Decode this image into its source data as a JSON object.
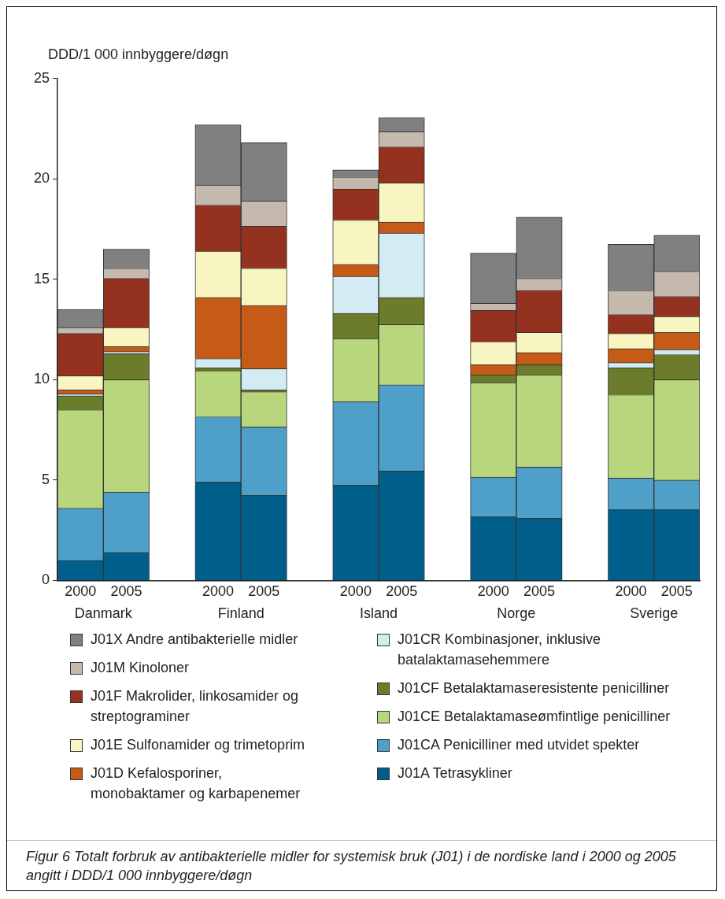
{
  "chart_data": {
    "type": "bar",
    "stacked": true,
    "ylabel": "DDD/1 000 innbyggere/døgn",
    "categories": [
      "2000",
      "2005",
      null,
      "2000",
      "2005",
      null,
      "2000",
      "2005",
      null,
      "2000",
      "2005",
      null,
      "2000",
      "2005"
    ],
    "series": [
      {
        "name": "J01A Tetrasykliner",
        "color": "#005f8a",
        "values": [
          1.0,
          1.4,
          null,
          4.9,
          4.25,
          null,
          4.75,
          5.45,
          null,
          3.2,
          3.1,
          null,
          3.55,
          3.55
        ]
      },
      {
        "name": "J01CA Penicilliner med utvidet spekter",
        "color": "#4fa0c8",
        "values": [
          2.6,
          3.0,
          null,
          3.25,
          3.4,
          null,
          4.15,
          4.3,
          null,
          1.95,
          2.55,
          null,
          1.55,
          1.45
        ]
      },
      {
        "name": "J01CE Betalaktamaseømfintlige penicilliner",
        "color": "#b8d67c",
        "values": [
          4.9,
          5.6,
          null,
          2.3,
          1.75,
          null,
          3.15,
          3.0,
          null,
          4.7,
          4.6,
          null,
          4.15,
          5.0
        ]
      },
      {
        "name": "J01CF Betalaktamaseresistente penicilliner",
        "color": "#6b7c2a",
        "values": [
          0.7,
          1.3,
          null,
          0.15,
          0.1,
          null,
          1.25,
          1.35,
          null,
          0.4,
          0.5,
          null,
          1.35,
          1.25
        ]
      },
      {
        "name": "J01CR Kombinasjoner, inklusive batalaktamasehemmere",
        "color": "#d3ebf2",
        "values": [
          0.1,
          0.1,
          null,
          0.45,
          1.05,
          null,
          1.85,
          3.2,
          null,
          null,
          null,
          null,
          0.25,
          0.25
        ]
      },
      {
        "name": "J01D Kefalosporiner, monobaktamer og karbapenemer",
        "color": "#c65b17",
        "values": [
          0.2,
          0.25,
          null,
          3.05,
          3.15,
          null,
          0.6,
          0.55,
          null,
          0.5,
          0.6,
          null,
          0.7,
          0.85
        ]
      },
      {
        "name": "J01E Sulfonamider og trimetoprim",
        "color": "#f9f5c0",
        "values": [
          0.7,
          0.95,
          null,
          2.3,
          1.85,
          null,
          2.2,
          1.95,
          null,
          1.15,
          1.0,
          null,
          0.75,
          0.8
        ]
      },
      {
        "name": "J01F Makrolider, linkosamider og streptograminer",
        "color": "#95321f",
        "values": [
          2.1,
          2.45,
          null,
          2.3,
          2.1,
          null,
          1.55,
          1.8,
          null,
          1.55,
          2.1,
          null,
          0.95,
          1.0
        ]
      },
      {
        "name": "J01M Kinoloner",
        "color": "#c5b8ac",
        "values": [
          0.3,
          0.5,
          null,
          1.0,
          1.25,
          null,
          0.6,
          0.75,
          null,
          0.35,
          0.6,
          null,
          1.2,
          1.25
        ]
      },
      {
        "name": "J01X Andre antibakterielle midler",
        "color": "#808080",
        "values": [
          0.9,
          0.95,
          null,
          3.0,
          2.9,
          null,
          0.35,
          0.7,
          null,
          2.5,
          3.05,
          null,
          2.3,
          1.8
        ]
      }
    ],
    "ylim": [
      0,
      25
    ],
    "yticks": [
      0,
      5,
      10,
      15,
      20,
      25
    ],
    "grid": false,
    "legend": "bottom",
    "annotations": [
      "Danmark",
      "Finland",
      "Island",
      "Norge",
      "Sverige",
      "Figur 6  Totalt forbruk av antibakterielle midler for systemisk bruk (J01) i de nordiske land i 2000 og 2005 angitt i DDD/1 000 innbyggere/døgn"
    ]
  }
}
